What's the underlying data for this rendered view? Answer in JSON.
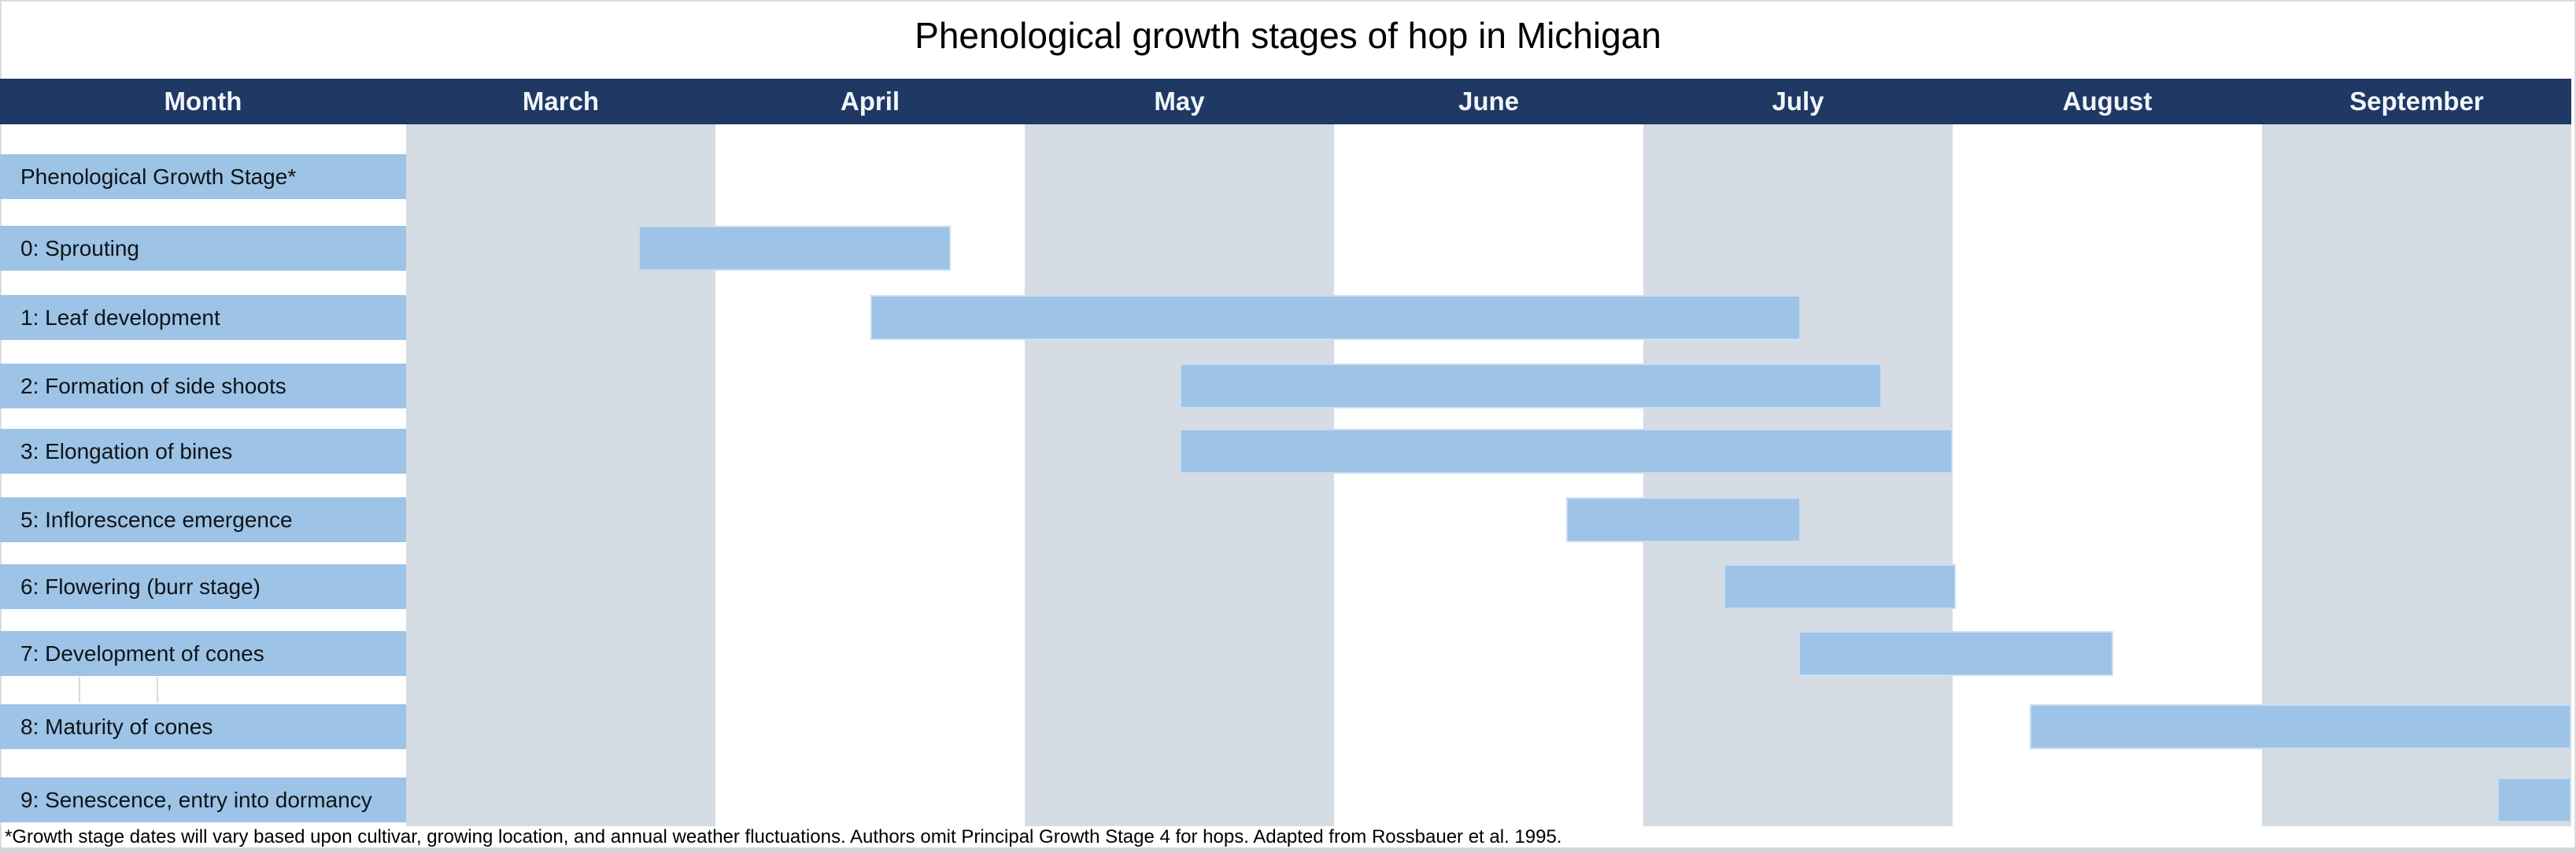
{
  "title": "Phenological growth stages of hop in Michigan",
  "header": {
    "month_col_label": "Month"
  },
  "footnote": "*Growth stage dates will vary based upon cultivar, growing location, and annual weather fluctuations. Authors omit Principal Growth Stage 4 for hops. Adapted from Rossbauer et al. 1995.",
  "colors": {
    "header_bg": "#1f3864",
    "header_text": "#f2f5fa",
    "bar_fill": "#9dc3e6",
    "bar_border": "#c9dcf0",
    "row_label_bg": "#9dc3e6",
    "month_stripe_gray": "#d6dce4",
    "title_text": "#000000",
    "label_text": "#101418"
  },
  "chart_data": {
    "type": "gantt",
    "title": "Phenological growth stages of hop in Michigan",
    "x_axis": {
      "unit": "month",
      "months": [
        "March",
        "April",
        "May",
        "June",
        "July",
        "August",
        "September"
      ],
      "range": [
        0,
        7
      ],
      "striped_months": [
        "March",
        "May",
        "July",
        "September"
      ],
      "grid": "alternating column shading"
    },
    "legend": "none",
    "rows": [
      {
        "label": "Phenological Growth Stage*",
        "bar": null
      },
      {
        "label": "0: Sprouting",
        "bar": {
          "start": 0.75,
          "end": 1.76
        }
      },
      {
        "label": "1: Leaf development",
        "bar": {
          "start": 1.5,
          "end": 4.51
        }
      },
      {
        "label": "2: Formation of side shoots",
        "bar": {
          "start": 2.5,
          "end": 4.77
        }
      },
      {
        "label": "3: Elongation of bines",
        "bar": {
          "start": 2.5,
          "end": 5.0
        }
      },
      {
        "label": "5: Inflorescence emergence",
        "bar": {
          "start": 3.75,
          "end": 4.51
        }
      },
      {
        "label": "6: Flowering (burr stage)",
        "bar": {
          "start": 4.26,
          "end": 5.01
        }
      },
      {
        "label": "7: Development of cones",
        "bar": {
          "start": 4.5,
          "end": 5.52
        }
      },
      {
        "label": "8: Maturity of cones",
        "bar": {
          "start": 5.25,
          "end": 7.0
        }
      },
      {
        "label": "9: Senescence, entry into dormancy",
        "bar": {
          "start": 6.76,
          "end": 7.0
        }
      }
    ],
    "footnote": "*Growth stage dates will vary based upon cultivar, growing location, and annual weather fluctuations. Authors omit Principal Growth Stage 4 for hops. Adapted from Rossbauer et al. 1995."
  }
}
